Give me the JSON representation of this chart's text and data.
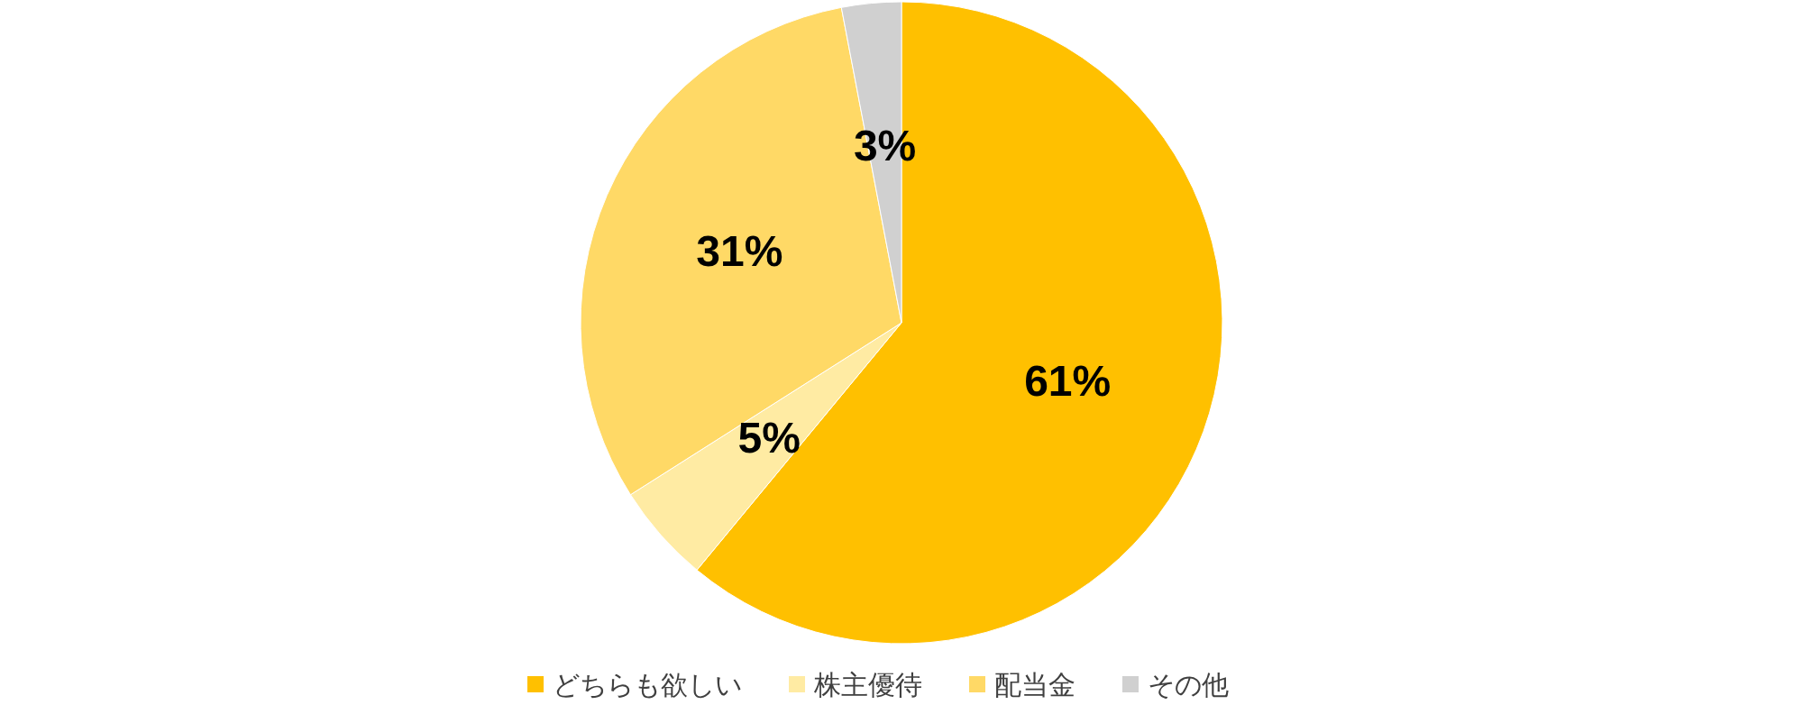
{
  "chart_data": {
    "type": "pie",
    "categories": [
      "どちらも欲しい",
      "株主優待",
      "配当金",
      "その他"
    ],
    "values": [
      61,
      5,
      31,
      3
    ],
    "colors": [
      "#ffc000",
      "#ffeba3",
      "#ffd966",
      "#d0d0d0"
    ],
    "value_labels": [
      "61%",
      "5%",
      "31%",
      "3%"
    ],
    "legend": "bottom"
  }
}
